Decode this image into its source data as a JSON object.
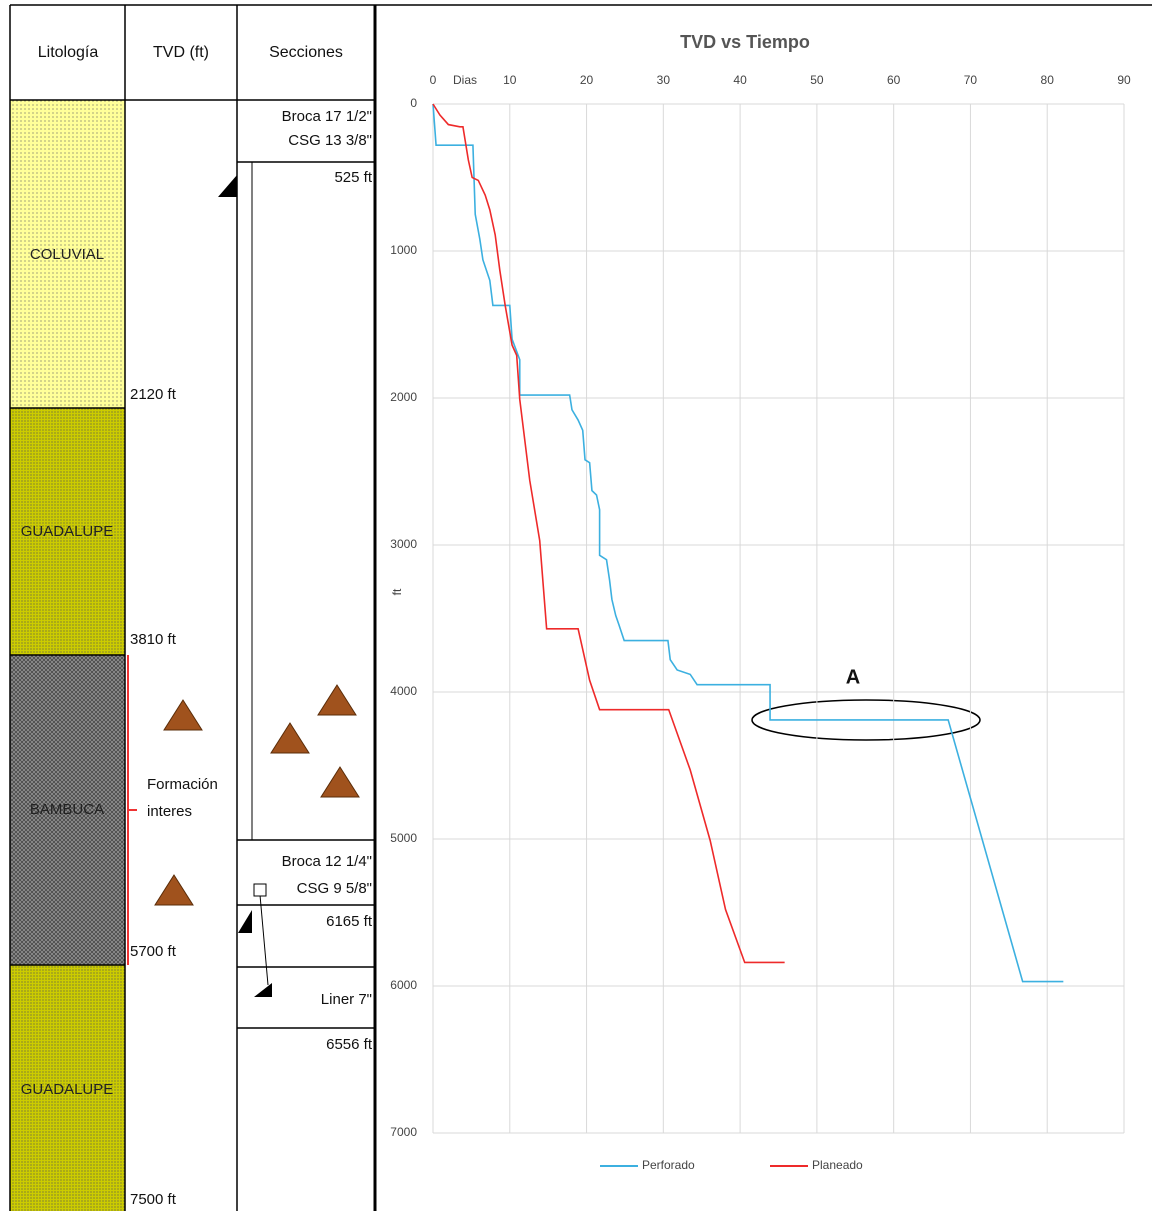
{
  "well_log": {
    "headers": [
      "Litología",
      "TVD (ft)",
      "Secciones"
    ],
    "lithology": [
      "COLUVIAL",
      "GUADALUPE",
      "BAMBUCA",
      "GUADALUPE"
    ],
    "depths": [
      "2120 ft",
      "3810 ft",
      "5700 ft",
      "7500 ft"
    ],
    "sections": [
      "Broca 17 1/2\"",
      "CSG 13 3/8\"",
      "525 ft",
      "Broca 12 1/4\"",
      "CSG 9 5/8\"",
      "6165 ft",
      "Liner 7\"",
      "6556 ft"
    ],
    "formation_note": [
      "Formación",
      "interes"
    ]
  },
  "chart_data": {
    "type": "line",
    "title": "TVD vs Tiempo",
    "x_label": "Dias",
    "y_label": "ft",
    "annotation": "A",
    "xlim": [
      0,
      90
    ],
    "ylim": [
      0,
      7000
    ],
    "xticks": [
      0,
      10,
      20,
      30,
      40,
      50,
      60,
      70,
      80,
      90
    ],
    "yticks": [
      0,
      1000,
      2000,
      3000,
      4000,
      5000,
      6000,
      7000
    ],
    "y_inverted": true,
    "x_axis_position": "top",
    "grid": true,
    "legend": "bottom",
    "series": [
      {
        "name": "Perforado",
        "color": "#3cb0e0",
        "x": [
          0,
          0.4,
          5.2,
          5.5,
          6.1,
          6.5,
          7.4,
          7.8,
          10,
          10.3,
          11.3,
          11.3,
          17.8,
          18.1,
          18.9,
          19.5,
          19.8,
          20.4,
          20.7,
          21.3,
          21.7,
          21.7,
          22.6,
          23,
          23.3,
          23.8,
          24.2,
          24.9,
          30.6,
          30.9,
          31.8,
          33.5,
          34.4,
          43.9,
          43.9,
          67.1,
          76.8,
          82.1
        ],
        "values": [
          0,
          280,
          280,
          750,
          920,
          1060,
          1200,
          1370,
          1370,
          1600,
          1740,
          1980,
          1980,
          2080,
          2150,
          2220,
          2420,
          2440,
          2630,
          2660,
          2760,
          3070,
          3100,
          3240,
          3370,
          3480,
          3540,
          3650,
          3650,
          3780,
          3850,
          3880,
          3950,
          3950,
          4190,
          4190,
          5970,
          5970
        ]
      },
      {
        "name": "Planeado",
        "color": "#ee2a2a",
        "x": [
          0,
          0.9,
          2,
          3.5,
          3.9,
          4.6,
          5.1,
          5.9,
          6.8,
          7.4,
          8.1,
          8.7,
          9.4,
          10.3,
          10.9,
          11.3,
          12.6,
          13.9,
          14.8,
          18.9,
          20.4,
          21.7,
          30.7,
          33.5,
          36.1,
          38.1,
          40.6,
          45.8
        ],
        "values": [
          0,
          75,
          140,
          155,
          155,
          380,
          500,
          520,
          620,
          720,
          890,
          1130,
          1370,
          1640,
          1710,
          2010,
          2560,
          2970,
          3570,
          3570,
          3920,
          4120,
          4120,
          4530,
          5010,
          5480,
          5840,
          5840
        ]
      }
    ]
  }
}
